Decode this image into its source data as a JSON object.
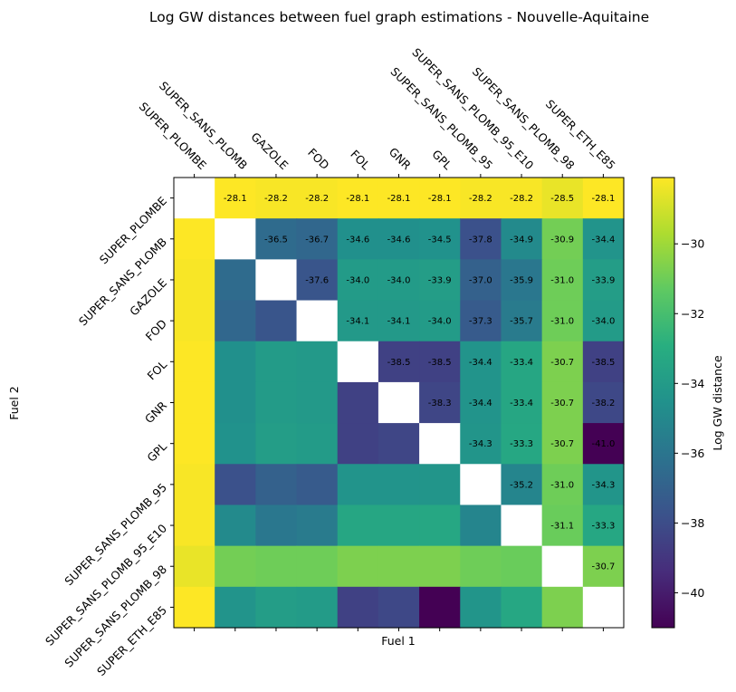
{
  "chart_data": {
    "type": "heatmap",
    "title": "Log GW distances between fuel graph estimations - Nouvelle-Aquitaine",
    "xlabel": "Fuel 1",
    "ylabel": "Fuel 2",
    "colorbar_label": "Log GW distance",
    "colormap": "viridis",
    "vmin": -41.0,
    "vmax": -28.1,
    "colorbar_ticks": [
      -30,
      -32,
      -34,
      -36,
      -38,
      -40
    ],
    "colorbar_tick_labels": [
      "−30",
      "−32",
      "−34",
      "−36",
      "−38",
      "−40"
    ],
    "x_categories": [
      "SUPER_PLOMBE",
      "SUPER_SANS_PLOMB",
      "GAZOLE",
      "FOD",
      "FOL",
      "GNR",
      "GPL",
      "SUPER_SANS_PLOMB_95",
      "SUPER_SANS_PLOMB_95_E10",
      "SUPER_SANS_PLOMB_98",
      "SUPER_ETH_E85"
    ],
    "y_categories": [
      "SUPER_PLOMBE",
      "SUPER_SANS_PLOMB",
      "GAZOLE",
      "FOD",
      "FOL",
      "GNR",
      "GPL",
      "SUPER_SANS_PLOMB_95",
      "SUPER_SANS_PLOMB_95_E10",
      "SUPER_SANS_PLOMB_98",
      "SUPER_ETH_E85"
    ],
    "values": [
      [
        null,
        -28.1,
        -28.2,
        -28.2,
        -28.1,
        -28.1,
        -28.1,
        -28.2,
        -28.2,
        -28.5,
        -28.1
      ],
      [
        -28.1,
        null,
        -36.5,
        -36.7,
        -34.6,
        -34.6,
        -34.5,
        -37.8,
        -34.9,
        -30.9,
        -34.4
      ],
      [
        -28.2,
        -36.5,
        null,
        -37.6,
        -34.0,
        -34.0,
        -33.9,
        -37.0,
        -35.9,
        -31.0,
        -33.9
      ],
      [
        -28.2,
        -36.7,
        -37.6,
        null,
        -34.1,
        -34.1,
        -34.0,
        -37.3,
        -35.7,
        -31.0,
        -34.0
      ],
      [
        -28.1,
        -34.6,
        -34.0,
        -34.1,
        null,
        -38.5,
        -38.5,
        -34.4,
        -33.4,
        -30.7,
        -38.5
      ],
      [
        -28.1,
        -34.6,
        -34.0,
        -34.1,
        -38.5,
        null,
        -38.3,
        -34.4,
        -33.4,
        -30.7,
        -38.2
      ],
      [
        -28.1,
        -34.5,
        -33.9,
        -34.0,
        -38.5,
        -38.3,
        null,
        -34.3,
        -33.3,
        -30.7,
        -41.0
      ],
      [
        -28.2,
        -37.8,
        -37.0,
        -37.3,
        -34.4,
        -34.4,
        -34.3,
        null,
        -35.2,
        -31.0,
        -34.3
      ],
      [
        -28.2,
        -34.9,
        -35.9,
        -35.7,
        -33.4,
        -33.4,
        -33.3,
        -35.2,
        null,
        -31.1,
        -33.3
      ],
      [
        -28.5,
        -30.9,
        -31.0,
        -31.0,
        -30.7,
        -30.7,
        -30.7,
        -31.0,
        -31.1,
        null,
        -30.7
      ],
      [
        -28.1,
        -34.4,
        -33.9,
        -34.0,
        -38.5,
        -38.2,
        -41.0,
        -34.3,
        -33.3,
        -30.7,
        null
      ]
    ],
    "annotated": "upper triangle",
    "annotation_format": "1 decimal"
  }
}
